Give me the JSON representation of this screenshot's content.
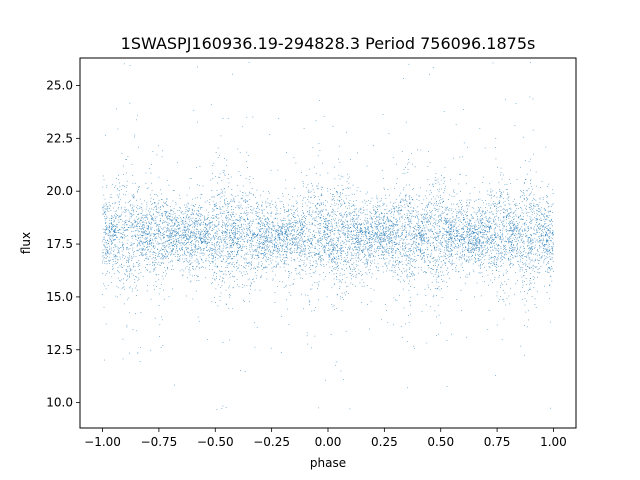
{
  "chart_data": {
    "type": "scatter",
    "title": "1SWASPJ160936.19-294828.3 Period 756096.1875s",
    "xlabel": "phase",
    "ylabel": "flux",
    "xlim": [
      -1.1,
      1.1
    ],
    "ylim": [
      8.8,
      26.3
    ],
    "xticks": [
      -1.0,
      -0.75,
      -0.5,
      -0.25,
      0.0,
      0.25,
      0.5,
      0.75,
      1.0
    ],
    "xtick_labels": [
      "−1.00",
      "−0.75",
      "−0.50",
      "−0.25",
      "0.00",
      "0.25",
      "0.50",
      "0.75",
      "1.00"
    ],
    "yticks": [
      10.0,
      12.5,
      15.0,
      17.5,
      20.0,
      22.5,
      25.0
    ],
    "ytick_labels": [
      "10.0",
      "12.5",
      "15.0",
      "17.5",
      "20.0",
      "22.5",
      "25.0"
    ],
    "grid": false,
    "marker_color": "#1f77b4",
    "series": [
      {
        "x_range": [
          -1.0,
          1.0
        ],
        "baseline_flux": 17.9,
        "typical_flux_range": [
          15.0,
          21.0
        ],
        "max_flux": 26.1,
        "min_flux": 9.6,
        "approx_points": 30000
      }
    ]
  }
}
